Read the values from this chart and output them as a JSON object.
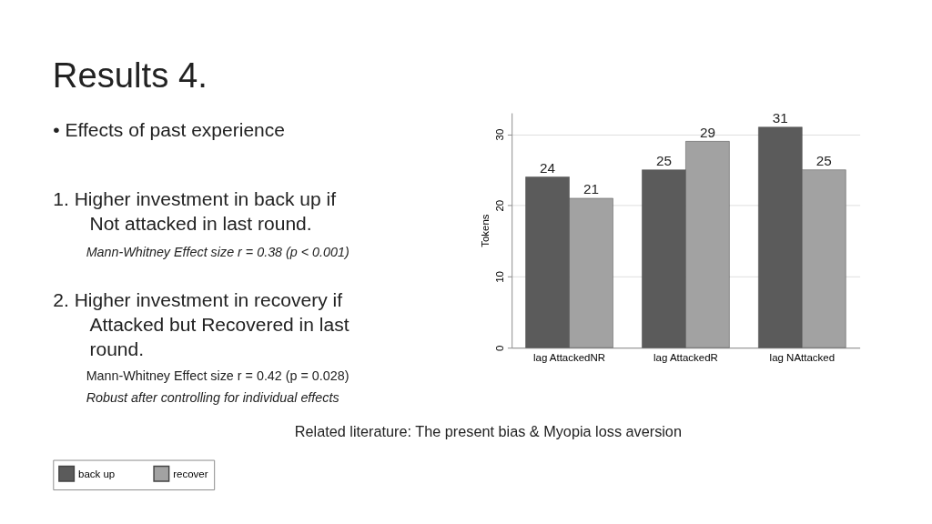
{
  "chart_data": {
    "type": "bar",
    "title": "Results 4.",
    "ylabel": "Tokens",
    "categories": [
      "lag AttackedNR",
      "lag AttackedR",
      "lag NAttacked"
    ],
    "series": [
      {
        "name": "back up",
        "color": "#5b5b5b",
        "values": [
          24,
          25,
          31
        ]
      },
      {
        "name": "recover",
        "color": "#a2a2a2",
        "values": [
          21,
          29,
          25
        ]
      }
    ],
    "ylim": [
      0,
      33
    ],
    "yticks": [
      0,
      10,
      20,
      30
    ],
    "grid": "y",
    "legend": "bottom",
    "data_labels": true,
    "annotations": [
      "• Effects of past experience",
      "1.  Higher investment in back up if",
      "Not attacked in last round.",
      "Mann-Whitney Effect size r = 0.38 (p < 0.001)",
      "2.  Higher investment in recovery if",
      "Attacked but Recovered in last",
      "round.",
      "Mann-Whitney Effect size r = 0.42 (p = 0.028)",
      "Robust after controlling for individual effects",
      "Related literature: The present bias & Myopia loss aversion"
    ]
  }
}
